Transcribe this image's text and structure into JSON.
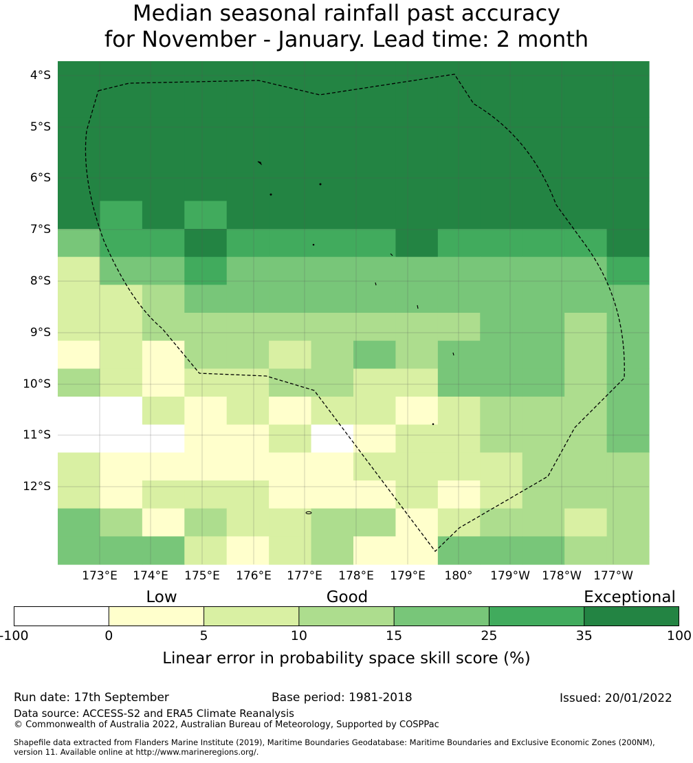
{
  "title": {
    "line1": "Median seasonal rainfall past accuracy",
    "line2": "for November - January. Lead time: 2 month"
  },
  "map": {
    "lat_labels": [
      "4°S",
      "5°S",
      "6°S",
      "7°S",
      "8°S",
      "9°S",
      "10°S",
      "11°S",
      "12°S"
    ],
    "lon_labels": [
      "173°E",
      "174°E",
      "175°E",
      "176°E",
      "177°E",
      "178°E",
      "179°E",
      "180°",
      "179°W",
      "178°W",
      "177°W"
    ],
    "colors": [
      "#ffffff",
      "#ffffcc",
      "#d9f0a3",
      "#addd8e",
      "#78c679",
      "#41ab5d",
      "#238443"
    ],
    "grid": [
      [
        6,
        6,
        6,
        6,
        6,
        6,
        6,
        6,
        6,
        6,
        6,
        6,
        6,
        6
      ],
      [
        6,
        6,
        6,
        6,
        6,
        6,
        6,
        6,
        6,
        6,
        6,
        6,
        6,
        6
      ],
      [
        6,
        6,
        6,
        6,
        6,
        6,
        6,
        6,
        6,
        6,
        6,
        6,
        6,
        6
      ],
      [
        6,
        6,
        6,
        6,
        6,
        6,
        6,
        6,
        6,
        6,
        6,
        6,
        6,
        6
      ],
      [
        6,
        6,
        6,
        6,
        6,
        6,
        6,
        6,
        6,
        6,
        6,
        6,
        6,
        6
      ],
      [
        6,
        5,
        6,
        5,
        6,
        6,
        6,
        6,
        6,
        6,
        6,
        6,
        6,
        6
      ],
      [
        4,
        5,
        5,
        6,
        5,
        5,
        5,
        5,
        6,
        5,
        5,
        5,
        5,
        6
      ],
      [
        2,
        4,
        4,
        5,
        4,
        4,
        4,
        4,
        4,
        4,
        4,
        4,
        4,
        5
      ],
      [
        2,
        2,
        3,
        4,
        4,
        4,
        4,
        4,
        4,
        4,
        4,
        4,
        4,
        4
      ],
      [
        2,
        2,
        3,
        3,
        3,
        3,
        3,
        3,
        3,
        3,
        4,
        4,
        3,
        4
      ],
      [
        1,
        2,
        1,
        3,
        3,
        2,
        3,
        4,
        3,
        4,
        4,
        4,
        3,
        4
      ],
      [
        3,
        2,
        1,
        2,
        2,
        3,
        3,
        2,
        2,
        4,
        4,
        4,
        3,
        4
      ],
      [
        0,
        0,
        2,
        1,
        2,
        1,
        2,
        2,
        1,
        2,
        3,
        3,
        3,
        4
      ],
      [
        0,
        0,
        0,
        1,
        1,
        2,
        0,
        1,
        2,
        2,
        3,
        3,
        3,
        4
      ],
      [
        2,
        1,
        1,
        1,
        1,
        1,
        1,
        2,
        2,
        2,
        2,
        3,
        3,
        3
      ],
      [
        2,
        1,
        2,
        2,
        2,
        1,
        1,
        1,
        2,
        1,
        2,
        3,
        3,
        3
      ],
      [
        4,
        3,
        1,
        3,
        2,
        2,
        3,
        3,
        1,
        2,
        3,
        3,
        2,
        3
      ],
      [
        4,
        4,
        4,
        2,
        1,
        2,
        3,
        1,
        1,
        4,
        4,
        4,
        3,
        3
      ]
    ]
  },
  "colorbar": {
    "tick_labels": [
      "-100",
      "0",
      "5",
      "10",
      "15",
      "25",
      "35",
      "100"
    ],
    "category_labels": [
      "Low",
      "Good",
      "Exceptional"
    ],
    "label": "Linear error in probability space skill score (%)"
  },
  "footer": {
    "run_date": "Run date: 17th September",
    "base_period": "Base period: 1981-2018",
    "issued": "Issued: 20/01/2022",
    "data_source": "Data source: ACCESS-S2 and ERA5 Climate Reanalysis",
    "copyright": "© Commonwealth of Australia 2022, Australian Bureau of Meteorology, Supported by COSPPac",
    "shapefile_line1": "Shapefile data extracted from Flanders Marine Institute (2019), Maritime Boundaries Geodatabase: Maritime Boundaries and Exclusive Economic Zones (200NM),",
    "shapefile_line2": "version 11. Available online at http://www.marineregions.org/."
  }
}
